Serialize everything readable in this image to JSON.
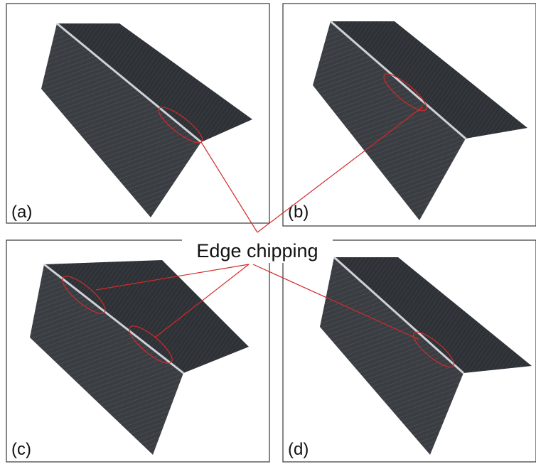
{
  "panels": [
    {
      "label": "(a)"
    },
    {
      "label": "(b)"
    },
    {
      "label": "(c)"
    },
    {
      "label": "(d)"
    }
  ],
  "annotation": "Edge chipping"
}
